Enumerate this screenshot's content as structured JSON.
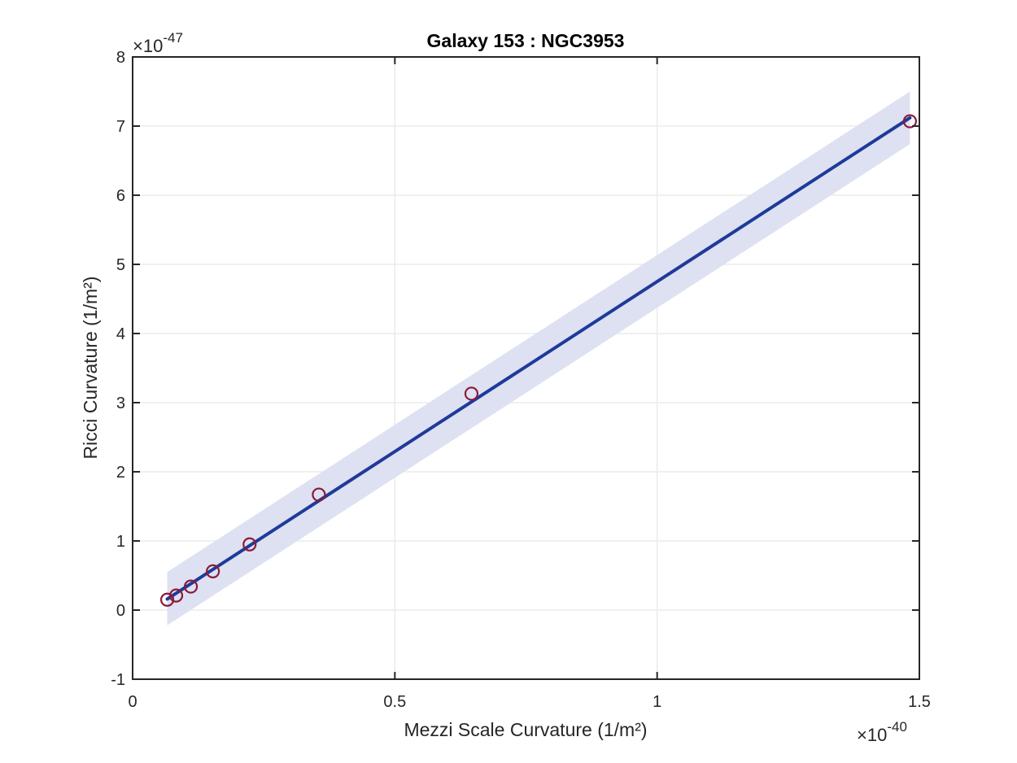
{
  "chart_data": {
    "type": "scatter",
    "title": "Galaxy 153 : NGC3953",
    "xlabel": "Mezzi Scale Curvature (1/m²)",
    "ylabel": "Ricci Curvature (1/m²)",
    "x_multiplier": {
      "times": "×",
      "base": "10",
      "exponent": "-40"
    },
    "y_multiplier": {
      "times": "×",
      "base": "10",
      "exponent": "-47"
    },
    "xlim": [
      0,
      1.5
    ],
    "ylim": [
      -1,
      8
    ],
    "xticks": [
      0,
      0.5,
      1,
      1.5
    ],
    "xtick_labels": [
      "0",
      "0.5",
      "1",
      "1.5"
    ],
    "yticks": [
      -1,
      0,
      1,
      2,
      3,
      4,
      5,
      6,
      7,
      8
    ],
    "ytick_labels": [
      "-1",
      "0",
      "1",
      "2",
      "3",
      "4",
      "5",
      "6",
      "7",
      "8"
    ],
    "grid": true,
    "points": {
      "x": [
        0.066,
        0.083,
        0.111,
        0.153,
        0.223,
        0.355,
        0.646,
        1.482
      ],
      "y": [
        0.15,
        0.21,
        0.34,
        0.56,
        0.95,
        1.67,
        3.13,
        7.07
      ]
    },
    "fit_line": {
      "x": [
        0.066,
        1.482
      ],
      "y": [
        0.16,
        7.12
      ]
    },
    "confidence_band": {
      "x": [
        0.066,
        1.482
      ],
      "upper": [
        0.55,
        7.5
      ],
      "lower": [
        -0.22,
        6.74
      ]
    },
    "colors": {
      "points": "#8b1a3a",
      "fit_line": "#1f3a9a",
      "band": "#dde1f1",
      "grid": "#ebebeb",
      "axes": "#262626"
    }
  }
}
